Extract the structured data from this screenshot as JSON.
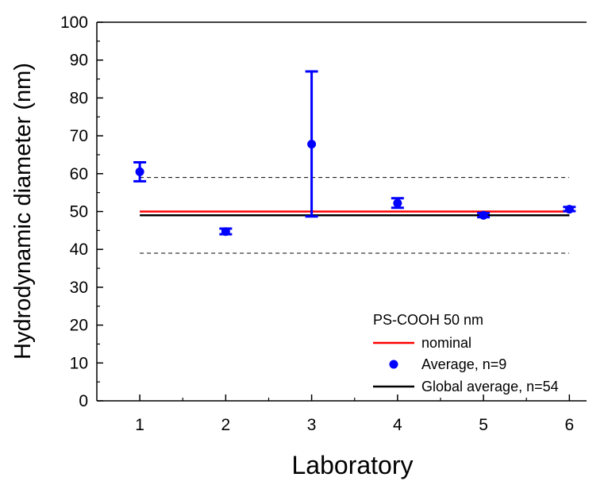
{
  "chart_data": {
    "type": "scatter",
    "xlabel": "Laboratory",
    "ylabel": "Hydrodynamic diameter (nm)",
    "xlim": [
      0.5,
      6.2
    ],
    "ylim": [
      0,
      100
    ],
    "x_ticks": [
      "1",
      "2",
      "3",
      "4",
      "5",
      "6"
    ],
    "y_ticks": [
      "0",
      "10",
      "20",
      "30",
      "40",
      "50",
      "60",
      "70",
      "80",
      "90",
      "100"
    ],
    "grid": false,
    "legend_title": "PS-COOH 50 nm",
    "legend_position": "bottom-right",
    "series": [
      {
        "name": "Average, n=9",
        "color": "#0000ff",
        "points": [
          {
            "x": 1,
            "y": 60.5,
            "err_low": 58.0,
            "err_high": 63.0
          },
          {
            "x": 2,
            "y": 44.7,
            "err_low": 44.0,
            "err_high": 45.5
          },
          {
            "x": 3,
            "y": 67.8,
            "err_low": 48.7,
            "err_high": 87.0
          },
          {
            "x": 4,
            "y": 52.2,
            "err_low": 51.0,
            "err_high": 53.5
          },
          {
            "x": 5,
            "y": 49.0,
            "err_low": 48.5,
            "err_high": 49.6
          },
          {
            "x": 6,
            "y": 50.6,
            "err_low": 50.1,
            "err_high": 51.2
          }
        ]
      }
    ],
    "reference_lines": [
      {
        "name": "nominal",
        "y": 50,
        "color": "#ff0000",
        "style": "solid"
      },
      {
        "name": "Global average, n=54",
        "y": 49,
        "color": "#000000",
        "style": "solid"
      },
      {
        "y": 59,
        "color": "#000000",
        "style": "dashed"
      },
      {
        "y": 39,
        "color": "#000000",
        "style": "dashed"
      }
    ]
  }
}
